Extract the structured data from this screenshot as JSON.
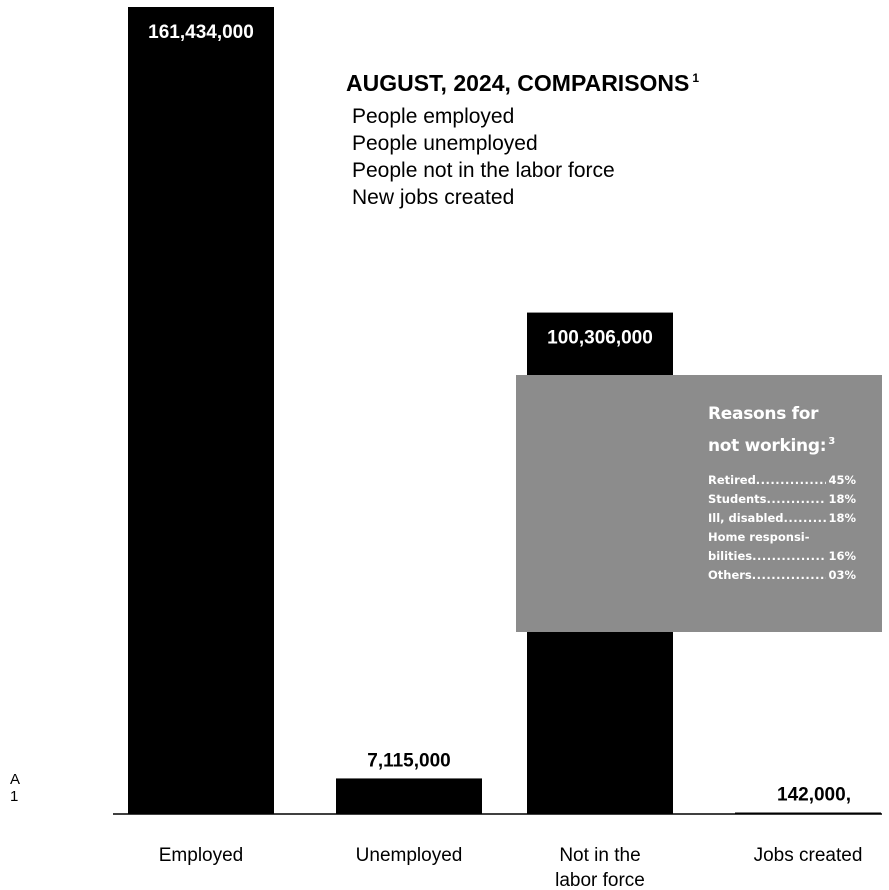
{
  "chart_data": {
    "type": "bar",
    "categories": [
      "Employed",
      "Unemployed",
      "Not in the\nlabor force",
      "Jobs created"
    ],
    "values": [
      161434000,
      7115000,
      100306000,
      142000
    ],
    "value_labels": [
      "161,434,000",
      "7,115,000",
      "100,306,000",
      "142,000,"
    ],
    "ylim": [
      0,
      161434000
    ],
    "grid": false,
    "legend": {
      "title": "AUGUST, 2024, COMPARISONS",
      "footnote": "1",
      "items": [
        "People employed",
        "People unemployed",
        "People not in the labor force",
        "New jobs created"
      ],
      "placement": "top-center"
    },
    "side_marks": [
      "A",
      "1"
    ]
  },
  "reasons": {
    "title_line1": "Reasons for",
    "title_line2": "not working:",
    "footnote": "3",
    "items": [
      {
        "name": "Retired",
        "pct": "45%"
      },
      {
        "name": "Students",
        "pct": "18%"
      },
      {
        "name": "Ill, disabled",
        "pct": "18%"
      },
      {
        "name": "Home responsi-",
        "pct": ""
      },
      {
        "name": "bilities",
        "pct": "16%"
      },
      {
        "name": "Others",
        "pct": "03%"
      }
    ],
    "fill_color": "#8c8c8c"
  },
  "colors": {
    "bar": "#000000",
    "background": "#ffffff"
  }
}
